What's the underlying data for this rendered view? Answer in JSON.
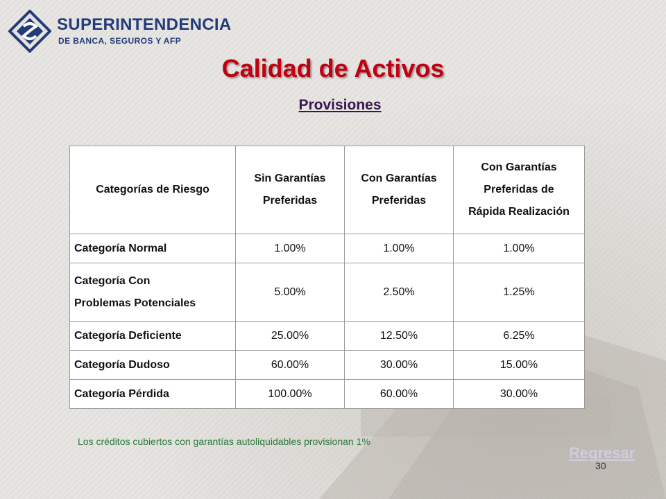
{
  "header": {
    "logo_line1": "SUPERINTENDENCIA",
    "logo_line2": "DE BANCA, SEGUROS Y AFP"
  },
  "title": "Calidad de Activos",
  "subtitle": "Provisiones",
  "table": {
    "headers": [
      [
        "Categorías de Riesgo"
      ],
      [
        "Sin Garantías",
        "Preferidas"
      ],
      [
        "Con Garantías",
        "Preferidas"
      ],
      [
        "Con Garantías",
        "Preferidas de",
        "Rápida Realización"
      ]
    ],
    "rows": [
      {
        "category": [
          "Categoría Normal"
        ],
        "values": [
          "1.00%",
          "1.00%",
          "1.00%"
        ]
      },
      {
        "category": [
          "Categoría Con",
          "Problemas Potenciales"
        ],
        "values": [
          "5.00%",
          "2.50%",
          "1.25%"
        ]
      },
      {
        "category": [
          "Categoría Deficiente"
        ],
        "values": [
          "25.00%",
          "12.50%",
          "6.25%"
        ]
      },
      {
        "category": [
          "Categoría Dudoso"
        ],
        "values": [
          "60.00%",
          "30.00%",
          "15.00%"
        ]
      },
      {
        "category": [
          "Categoría Pérdida"
        ],
        "values": [
          "100.00%",
          "60.00%",
          "30.00%"
        ]
      }
    ]
  },
  "note": "Los créditos cubiertos con garantías autoliquidables provisionan 1%",
  "nav": {
    "back_label": "Regresar"
  },
  "page_number": "30",
  "colors": {
    "title": "#c00010",
    "logo": "#243b7a",
    "note": "#2a7a3a"
  }
}
